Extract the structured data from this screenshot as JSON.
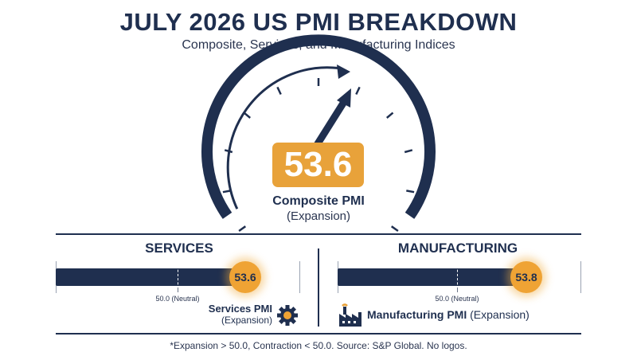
{
  "header": {
    "title": "JULY 2026 US PMI BREAKDOWN",
    "subtitle": "Composite, Services, and Manufacturing Indices"
  },
  "composite": {
    "value": "53.6",
    "label": "Composite PMI",
    "status": "(Expansion)",
    "level": 53.6
  },
  "services": {
    "section_title": "SERVICES",
    "value": "53.6",
    "level": 53.6,
    "neutral_label": "50.0 (Neutral)",
    "caption_name": "Services PMI",
    "caption_status": "(Expansion)",
    "icon": "gear-icon"
  },
  "manufacturing": {
    "section_title": "MANUFACTURING",
    "value": "53.8",
    "level": 53.8,
    "neutral_label": "50.0 (Neutral)",
    "caption_name": "Manufacturing PMI",
    "caption_status": "(Expansion)",
    "icon": "factory-icon"
  },
  "footnote": "*Expansion > 50.0, Contraction < 50.0. Source: S&P Global. No logos.",
  "colors": {
    "navy": "#1f2f4f",
    "accent": "#e8a23a"
  }
}
